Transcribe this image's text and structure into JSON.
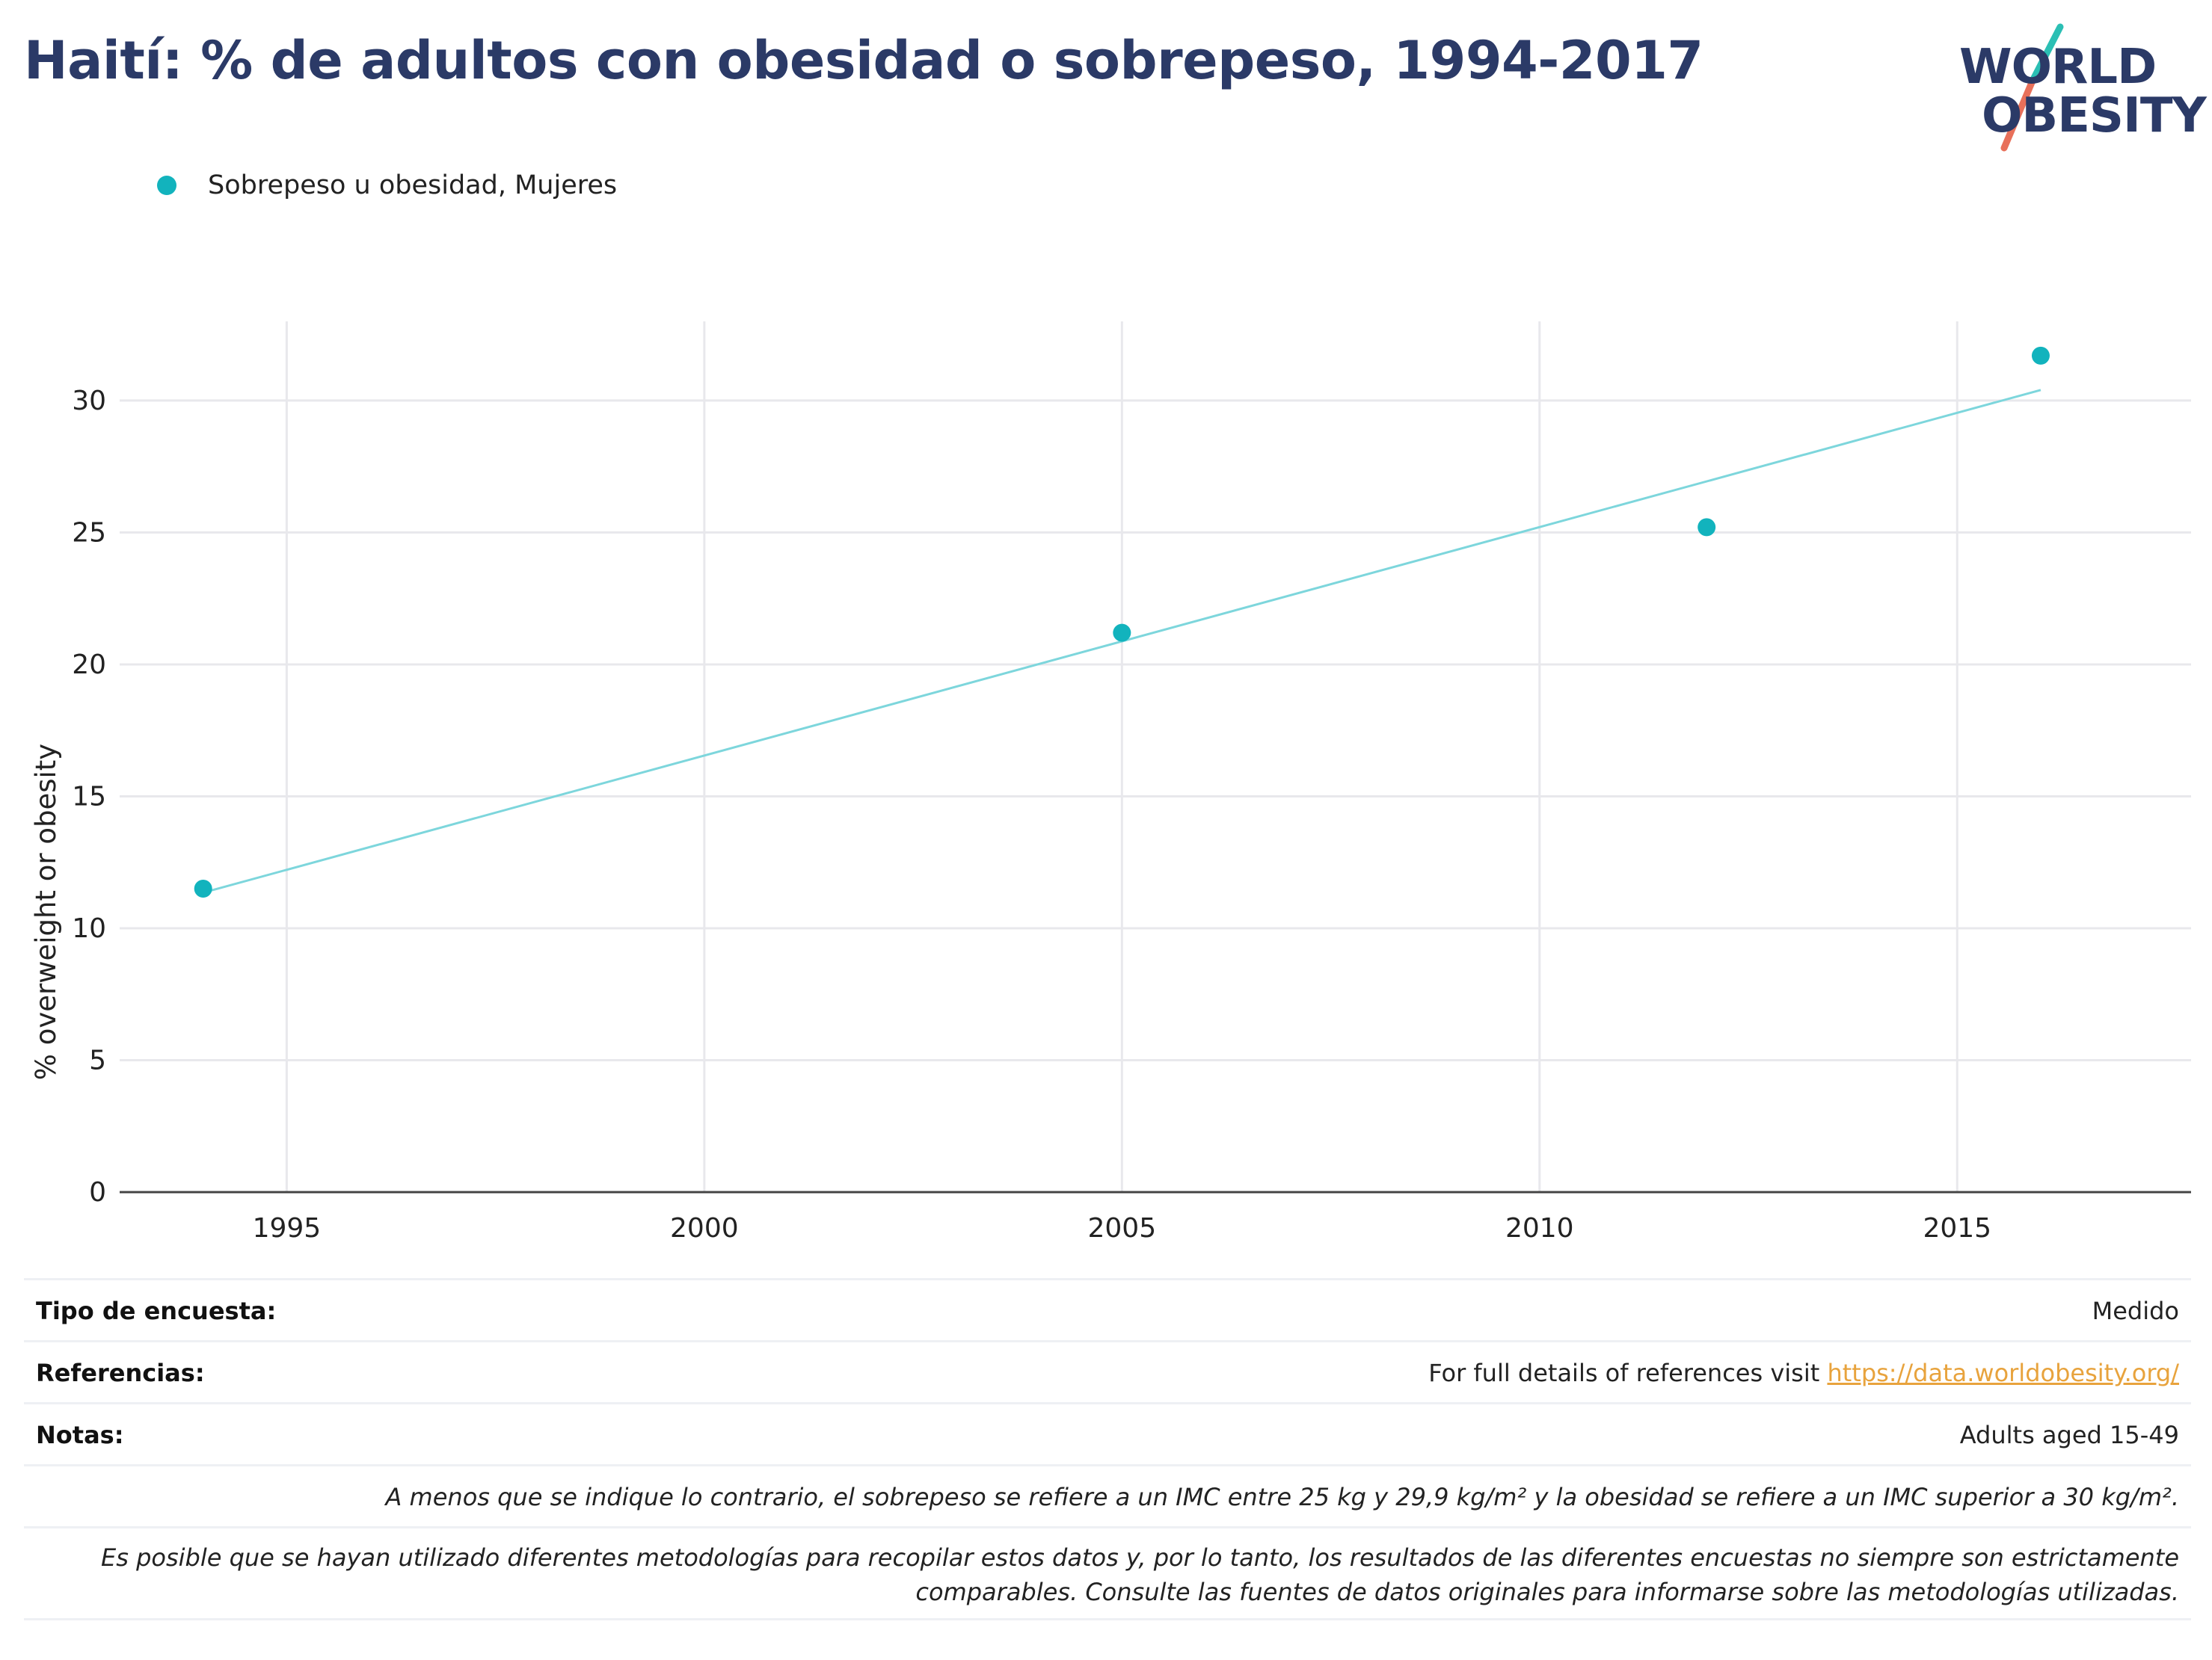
{
  "header": {
    "title": "Haití: % de adultos con obesidad o sobrepeso, 1994-2017"
  },
  "logo": {
    "line1": "WORLD",
    "line2": "OBESITY",
    "accent_teal": "#2bbfb4",
    "accent_coral": "#e8705a"
  },
  "legend": {
    "series_label": "Sobrepeso u obesidad, Mujeres",
    "color": "#12b3bd"
  },
  "chart_data": {
    "type": "scatter",
    "ylabel": "% overweight or obesity",
    "xlabel": "",
    "xlim": [
      1993,
      2017.8
    ],
    "ylim": [
      0,
      33
    ],
    "x_ticks": [
      1995,
      2000,
      2005,
      2010,
      2015
    ],
    "y_ticks": [
      0,
      5,
      10,
      15,
      20,
      25,
      30
    ],
    "grid": true,
    "legend_position": "top-left",
    "series": [
      {
        "name": "Sobrepeso u obesidad, Mujeres",
        "color": "#12b3bd",
        "points": [
          {
            "x": 1994,
            "y": 11.5
          },
          {
            "x": 2005,
            "y": 21.2
          },
          {
            "x": 2012,
            "y": 25.2
          },
          {
            "x": 2016,
            "y": 31.7
          }
        ]
      }
    ],
    "trendline": {
      "color": "#7dd6dc",
      "x": [
        1994,
        2016
      ],
      "y": [
        11.35,
        30.4
      ]
    }
  },
  "footer": {
    "survey_type_label": "Tipo de encuesta:",
    "survey_type_value": "Medido",
    "references_label": "Referencias:",
    "references_text": "For full details of references visit ",
    "references_link": "https://data.worldobesity.org/",
    "notes_label": "Notas:",
    "notes_value": "Adults aged 15-49",
    "note_bmi": "A menos que se indique lo contrario, el sobrepeso se refiere a un IMC entre 25 kg y 29,9 kg/m² y la obesidad se refiere a un IMC superior a 30 kg/m².",
    "note_methods": "Es posible que se hayan utilizado diferentes metodologías para recopilar estos datos y, por lo tanto, los resultados de las diferentes encuestas no siempre son estrictamente comparables. Consulte las fuentes de datos originales para informarse sobre las metodologías utilizadas."
  }
}
